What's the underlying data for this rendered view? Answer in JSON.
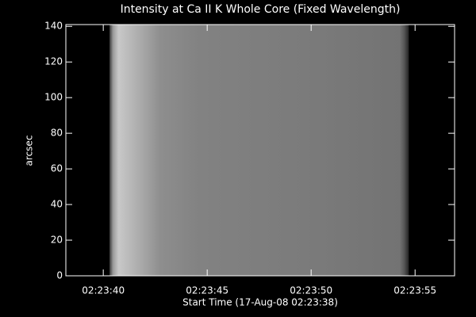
{
  "chart_data": {
    "type": "image",
    "title": "Intensity at Ca II K Whole Core (Fixed Wavelength)",
    "x_label": "Start Time (17-Aug-08 02:23:38)",
    "y_label": "arcsec",
    "xlim": [
      38.2,
      56.9
    ],
    "ylim": [
      0,
      141
    ],
    "xticks": [
      {
        "value": 40,
        "label": "02:23:40"
      },
      {
        "value": 45,
        "label": "02:23:45"
      },
      {
        "value": 50,
        "label": "02:23:50"
      },
      {
        "value": 55,
        "label": "02:23:55"
      }
    ],
    "yticks": [
      0,
      20,
      40,
      60,
      80,
      100,
      120,
      140
    ],
    "image_x": [
      40.3,
      54.7
    ],
    "image_y": [
      0,
      141
    ]
  }
}
